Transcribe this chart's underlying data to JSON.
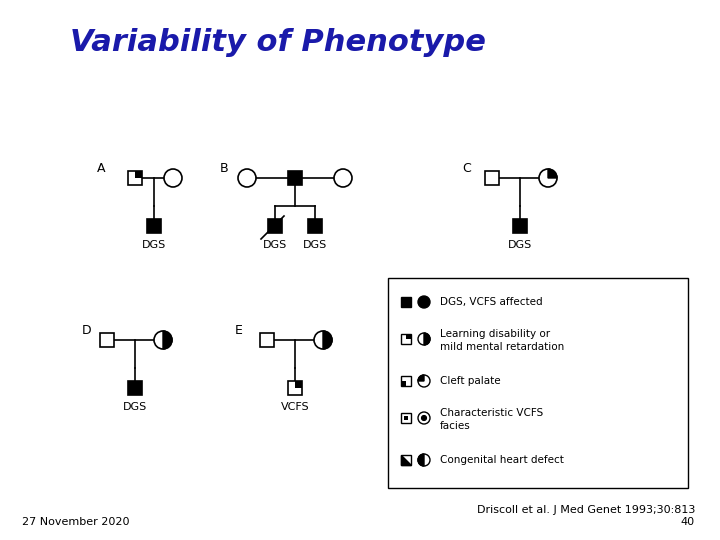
{
  "title": "Variability of Phenotype",
  "title_color": "#1a1aaa",
  "title_fontsize": 22,
  "title_fontweight": "bold",
  "bg_color": "#ffffff",
  "footer_left": "27 November 2020",
  "footer_right_line1": "Driscoll et al. J Med Genet 1993;30:813",
  "footer_right_line2": "40",
  "footer_fontsize": 8
}
